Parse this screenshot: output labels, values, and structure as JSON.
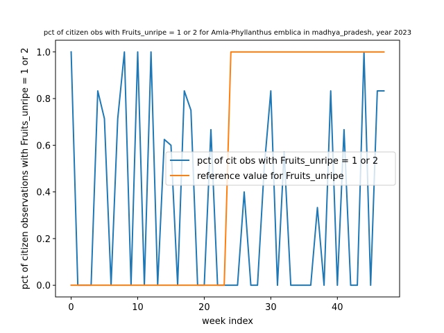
{
  "chart_data": {
    "type": "line",
    "title": "pct of citizen obs with Fruits_unripe = 1 or 2 for Amla-Phyllanthus emblica in madhya_pradesh, year 2023",
    "xlabel": "week index",
    "ylabel": "pct of citizen observations with Fruits_unripe = 1 or 2",
    "xlim": [
      -2.35,
      49.35
    ],
    "ylim": [
      -0.05,
      1.05
    ],
    "xticks": [
      0,
      10,
      20,
      30,
      40
    ],
    "yticks": [
      "0.0",
      "0.2",
      "0.4",
      "0.6",
      "0.8",
      "1.0"
    ],
    "grid": false,
    "legend_position": "center-right",
    "series": [
      {
        "name": "pct of cit obs with Fruits_unripe = 1 or 2",
        "color": "#1f77b4",
        "x": [
          0,
          1,
          2,
          3,
          4,
          5,
          6,
          7,
          8,
          9,
          10,
          11,
          12,
          13,
          14,
          15,
          16,
          17,
          18,
          19,
          20,
          21,
          22,
          23,
          24,
          25,
          26,
          27,
          28,
          29,
          30,
          31,
          32,
          33,
          34,
          35,
          36,
          37,
          38,
          39,
          40,
          41,
          42,
          43,
          44,
          45,
          46,
          47
        ],
        "y": [
          1.0,
          0.0,
          0.0,
          0.0,
          0.833,
          0.714,
          0.0,
          0.714,
          1.0,
          0.0,
          1.0,
          0.0,
          1.0,
          0.0,
          0.625,
          0.6,
          0.0,
          0.833,
          0.75,
          0.0,
          0.0,
          0.667,
          0.0,
          0.0,
          0.0,
          0.0,
          0.4,
          0.0,
          0.0,
          0.5,
          0.833,
          0.0,
          0.571,
          0.0,
          0.0,
          0.0,
          0.0,
          0.333,
          0.0,
          0.833,
          0.0,
          0.667,
          0.0,
          0.0,
          1.0,
          0.0,
          0.833,
          0.833
        ]
      },
      {
        "name": "reference value for Fruits_unripe",
        "color": "#ff7f0e",
        "x": [
          0,
          1,
          2,
          3,
          4,
          5,
          6,
          7,
          8,
          9,
          10,
          11,
          12,
          13,
          14,
          15,
          16,
          17,
          18,
          19,
          20,
          21,
          22,
          23,
          24,
          25,
          26,
          27,
          28,
          29,
          30,
          31,
          32,
          33,
          34,
          35,
          36,
          37,
          38,
          39,
          40,
          41,
          42,
          43,
          44,
          45,
          46,
          47
        ],
        "y": [
          0,
          0,
          0,
          0,
          0,
          0,
          0,
          0,
          0,
          0,
          0,
          0,
          0,
          0,
          0,
          0,
          0,
          0,
          0,
          0,
          0,
          0,
          0,
          0,
          1,
          1,
          1,
          1,
          1,
          1,
          1,
          1,
          1,
          1,
          1,
          1,
          1,
          1,
          1,
          1,
          1,
          1,
          1,
          1,
          1,
          1,
          1,
          1
        ]
      }
    ]
  }
}
